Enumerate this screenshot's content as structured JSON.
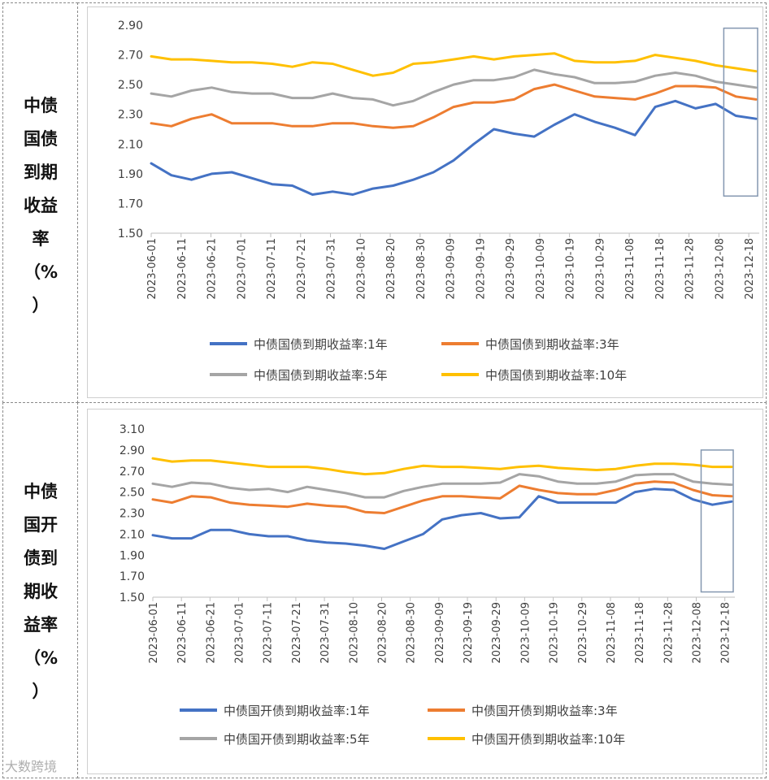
{
  "panels": [
    {
      "side_label_lines": [
        "中债",
        "国债",
        "到期",
        "收益",
        "率",
        "（%",
        "）"
      ],
      "chart_data": {
        "type": "line",
        "title": "",
        "xlabel": "",
        "ylabel": "",
        "ylim": [
          1.5,
          2.9
        ],
        "yticks": [
          "2.90",
          "2.70",
          "2.50",
          "2.30",
          "2.10",
          "1.90",
          "1.70",
          "1.50"
        ],
        "x_tick_labels": [
          "2023-06-01",
          "2023-06-11",
          "2023-06-21",
          "2023-07-01",
          "2023-07-11",
          "2023-07-21",
          "2023-07-31",
          "2023-08-10",
          "2023-08-20",
          "2023-08-30",
          "2023-09-09",
          "2023-09-19",
          "2023-09-29",
          "2023-10-09",
          "2023-10-19",
          "2023-10-29",
          "2023-11-08",
          "2023-11-18",
          "2023-11-28",
          "2023-12-08",
          "2023-12-18"
        ],
        "highlight_box": {
          "x_from": "2023-12-08",
          "y_from": 1.75,
          "y_to": 2.88
        },
        "series": [
          {
            "name": "中债国债到期收益率:1年",
            "color": "#4472c4",
            "values": [
              1.97,
              1.89,
              1.86,
              1.9,
              1.91,
              1.87,
              1.83,
              1.82,
              1.76,
              1.78,
              1.76,
              1.8,
              1.82,
              1.86,
              1.91,
              1.99,
              2.1,
              2.2,
              2.17,
              2.15,
              2.23,
              2.3,
              2.25,
              2.21,
              2.16,
              2.35,
              2.39,
              2.34,
              2.37,
              2.29,
              2.27
            ]
          },
          {
            "name": "中债国债到期收益率:3年",
            "color": "#ed7d31",
            "values": [
              2.24,
              2.22,
              2.27,
              2.3,
              2.24,
              2.24,
              2.24,
              2.22,
              2.22,
              2.24,
              2.24,
              2.22,
              2.21,
              2.22,
              2.28,
              2.35,
              2.38,
              2.38,
              2.4,
              2.47,
              2.5,
              2.46,
              2.42,
              2.41,
              2.4,
              2.44,
              2.49,
              2.49,
              2.48,
              2.42,
              2.4
            ]
          },
          {
            "name": "中债国债到期收益率:5年",
            "color": "#a5a5a5",
            "values": [
              2.44,
              2.42,
              2.46,
              2.48,
              2.45,
              2.44,
              2.44,
              2.41,
              2.41,
              2.44,
              2.41,
              2.4,
              2.36,
              2.39,
              2.45,
              2.5,
              2.53,
              2.53,
              2.55,
              2.6,
              2.57,
              2.55,
              2.51,
              2.51,
              2.52,
              2.56,
              2.58,
              2.56,
              2.52,
              2.5,
              2.48
            ]
          },
          {
            "name": "中债国债到期收益率:10年",
            "color": "#ffc000",
            "values": [
              2.69,
              2.67,
              2.67,
              2.66,
              2.65,
              2.65,
              2.64,
              2.62,
              2.65,
              2.64,
              2.6,
              2.56,
              2.58,
              2.64,
              2.65,
              2.67,
              2.69,
              2.67,
              2.69,
              2.7,
              2.71,
              2.66,
              2.65,
              2.65,
              2.66,
              2.7,
              2.68,
              2.66,
              2.63,
              2.61,
              2.59
            ]
          }
        ]
      }
    },
    {
      "side_label_lines": [
        "中债",
        "国开",
        "债到",
        "期收",
        "益率",
        "（%",
        "）"
      ],
      "chart_data": {
        "type": "line",
        "title": "",
        "xlabel": "",
        "ylabel": "",
        "ylim": [
          1.5,
          3.1
        ],
        "yticks": [
          "3.10",
          "2.90",
          "2.70",
          "2.50",
          "2.30",
          "2.10",
          "1.90",
          "1.70",
          "1.50"
        ],
        "x_tick_labels": [
          "2023-06-01",
          "2023-06-11",
          "2023-06-21",
          "2023-07-01",
          "2023-07-11",
          "2023-07-21",
          "2023-07-31",
          "2023-08-10",
          "2023-08-20",
          "2023-08-30",
          "2023-09-09",
          "2023-09-19",
          "2023-09-29",
          "2023-10-09",
          "2023-10-19",
          "2023-10-29",
          "2023-11-08",
          "2023-11-18",
          "2023-11-28",
          "2023-12-08",
          "2023-12-18"
        ],
        "highlight_box": {
          "x_from": "2023-12-08",
          "y_from": 1.55,
          "y_to": 2.9
        },
        "series": [
          {
            "name": "中债国开债到期收益率:1年",
            "color": "#4472c4",
            "values": [
              2.09,
              2.06,
              2.06,
              2.14,
              2.14,
              2.1,
              2.08,
              2.08,
              2.04,
              2.02,
              2.01,
              1.99,
              1.96,
              2.03,
              2.1,
              2.24,
              2.28,
              2.3,
              2.25,
              2.26,
              2.46,
              2.4,
              2.4,
              2.4,
              2.4,
              2.5,
              2.53,
              2.52,
              2.43,
              2.38,
              2.41
            ]
          },
          {
            "name": "中债国开债到期收益率:3年",
            "color": "#ed7d31",
            "values": [
              2.43,
              2.4,
              2.46,
              2.45,
              2.4,
              2.38,
              2.37,
              2.36,
              2.39,
              2.37,
              2.36,
              2.31,
              2.3,
              2.36,
              2.42,
              2.46,
              2.46,
              2.45,
              2.44,
              2.56,
              2.52,
              2.49,
              2.48,
              2.48,
              2.52,
              2.58,
              2.6,
              2.59,
              2.52,
              2.47,
              2.46
            ]
          },
          {
            "name": "中债国开债到期收益率:5年",
            "color": "#a5a5a5",
            "values": [
              2.58,
              2.55,
              2.59,
              2.58,
              2.54,
              2.52,
              2.53,
              2.5,
              2.55,
              2.52,
              2.49,
              2.45,
              2.45,
              2.51,
              2.55,
              2.58,
              2.58,
              2.58,
              2.59,
              2.67,
              2.65,
              2.6,
              2.58,
              2.58,
              2.6,
              2.66,
              2.67,
              2.67,
              2.6,
              2.58,
              2.57
            ]
          },
          {
            "name": "中债国开债到期收益率:10年",
            "color": "#ffc000",
            "values": [
              2.82,
              2.79,
              2.8,
              2.8,
              2.78,
              2.76,
              2.74,
              2.74,
              2.74,
              2.72,
              2.69,
              2.67,
              2.68,
              2.72,
              2.75,
              2.74,
              2.74,
              2.73,
              2.72,
              2.74,
              2.75,
              2.73,
              2.72,
              2.71,
              2.72,
              2.75,
              2.77,
              2.77,
              2.76,
              2.74,
              2.74
            ]
          }
        ]
      }
    }
  ],
  "watermark": "大数跨境"
}
